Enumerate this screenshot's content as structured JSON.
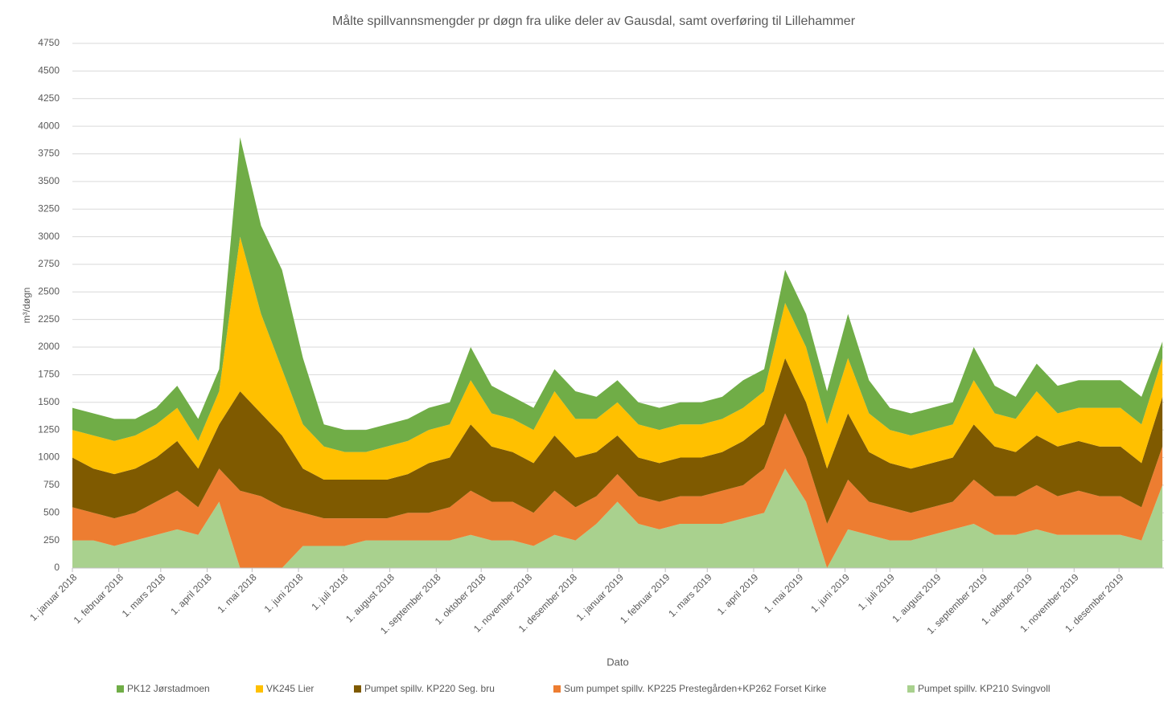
{
  "chart_data": {
    "type": "stacked_area",
    "title": "Målte spillvannsmengder pr døgn fra ulike deler av Gausdal, samt overføring til Lillehammer",
    "x_label": "Dato",
    "y_label": "m³/døgn",
    "x": [
      0,
      14,
      28,
      42,
      56,
      70,
      84,
      98,
      112,
      126,
      140,
      154,
      168,
      182,
      196,
      210,
      224,
      238,
      252,
      266,
      280,
      294,
      308,
      322,
      336,
      350,
      364,
      378,
      392,
      406,
      420,
      434,
      448,
      462,
      476,
      490,
      504,
      518,
      532,
      546,
      560,
      574,
      588,
      602,
      616,
      630,
      644,
      658,
      672,
      686,
      700,
      714,
      728
    ],
    "xlim": [
      0,
      729
    ],
    "xticks": [
      {
        "value": 0,
        "label": "1. januar 2018"
      },
      {
        "value": 31,
        "label": "1. februar 2018"
      },
      {
        "value": 59,
        "label": "1. mars 2018"
      },
      {
        "value": 90,
        "label": "1. april 2018"
      },
      {
        "value": 120,
        "label": "1. mai 2018"
      },
      {
        "value": 151,
        "label": "1. juni 2018"
      },
      {
        "value": 181,
        "label": "1. juli 2018"
      },
      {
        "value": 212,
        "label": "1. august 2018"
      },
      {
        "value": 243,
        "label": "1. september 2018"
      },
      {
        "value": 273,
        "label": "1. oktober 2018"
      },
      {
        "value": 304,
        "label": "1. november 2018"
      },
      {
        "value": 334,
        "label": "1. desember 2018"
      },
      {
        "value": 365,
        "label": "1. januar 2019"
      },
      {
        "value": 396,
        "label": "1. februar 2019"
      },
      {
        "value": 424,
        "label": "1. mars 2019"
      },
      {
        "value": 455,
        "label": "1. april 2019"
      },
      {
        "value": 485,
        "label": "1. mai 2019"
      },
      {
        "value": 516,
        "label": "1. juni 2019"
      },
      {
        "value": 546,
        "label": "1. juli 2019"
      },
      {
        "value": 577,
        "label": "1. august 2019"
      },
      {
        "value": 608,
        "label": "1. september 2019"
      },
      {
        "value": 638,
        "label": "1. oktober 2019"
      },
      {
        "value": 669,
        "label": "1. november 2019"
      },
      {
        "value": 699,
        "label": "1. desember 2019"
      }
    ],
    "ylim": [
      0,
      4750
    ],
    "yticks": [
      0,
      250,
      500,
      750,
      1000,
      1250,
      1500,
      1750,
      2000,
      2250,
      2500,
      2750,
      3000,
      3250,
      3500,
      3750,
      4000,
      4250,
      4500,
      4750
    ],
    "grid": true,
    "legend": "bottom",
    "series": [
      {
        "name": "PK12 Jørstadmoen",
        "color": "#70ad47",
        "values": [
          200,
          200,
          200,
          150,
          150,
          200,
          200,
          200,
          900,
          800,
          900,
          600,
          200,
          200,
          200,
          200,
          200,
          200,
          200,
          300,
          250,
          200,
          200,
          200,
          250,
          200,
          200,
          200,
          200,
          200,
          200,
          200,
          250,
          200,
          300,
          300,
          300,
          400,
          300,
          200,
          200,
          200,
          200,
          300,
          250,
          200,
          250,
          250,
          250,
          250,
          250,
          250,
          150
        ]
      },
      {
        "name": "VK245 Lier",
        "color": "#ffc000",
        "values": [
          250,
          300,
          300,
          300,
          300,
          300,
          250,
          300,
          1400,
          900,
          600,
          400,
          300,
          250,
          250,
          300,
          300,
          300,
          300,
          400,
          300,
          300,
          300,
          400,
          350,
          300,
          300,
          300,
          300,
          300,
          300,
          300,
          300,
          300,
          500,
          500,
          400,
          500,
          350,
          300,
          300,
          300,
          300,
          400,
          300,
          300,
          400,
          300,
          300,
          350,
          350,
          350,
          350
        ]
      },
      {
        "name": "Pumpet spillv. KP220 Seg. bru",
        "color": "#7f5a00",
        "values": [
          450,
          400,
          400,
          400,
          400,
          450,
          350,
          400,
          900,
          750,
          650,
          400,
          350,
          350,
          350,
          350,
          350,
          450,
          450,
          600,
          500,
          450,
          450,
          500,
          450,
          400,
          350,
          350,
          350,
          350,
          350,
          350,
          400,
          400,
          500,
          500,
          500,
          600,
          450,
          400,
          400,
          400,
          400,
          500,
          450,
          400,
          450,
          450,
          450,
          450,
          450,
          400,
          450
        ]
      },
      {
        "name": "Sum pumpet spillv. KP225 Prestegården+KP262 Forset Kirke",
        "color": "#ed7d31",
        "values": [
          300,
          250,
          250,
          250,
          300,
          350,
          250,
          300,
          700,
          650,
          550,
          300,
          250,
          250,
          200,
          200,
          250,
          250,
          300,
          400,
          350,
          350,
          300,
          400,
          300,
          250,
          250,
          250,
          250,
          250,
          250,
          300,
          300,
          400,
          500,
          400,
          400,
          450,
          300,
          300,
          250,
          250,
          250,
          400,
          350,
          350,
          400,
          350,
          400,
          350,
          350,
          300,
          350
        ]
      },
      {
        "name": "Pumpet spillv. KP210 Svingvoll",
        "color": "#a9d18e",
        "values": [
          250,
          250,
          200,
          250,
          300,
          350,
          300,
          600,
          0,
          0,
          0,
          200,
          200,
          200,
          250,
          250,
          250,
          250,
          250,
          300,
          250,
          250,
          200,
          300,
          250,
          400,
          600,
          400,
          350,
          400,
          400,
          400,
          450,
          500,
          900,
          600,
          0,
          350,
          300,
          250,
          250,
          300,
          350,
          400,
          300,
          300,
          350,
          300,
          300,
          300,
          300,
          250,
          750
        ]
      }
    ]
  }
}
